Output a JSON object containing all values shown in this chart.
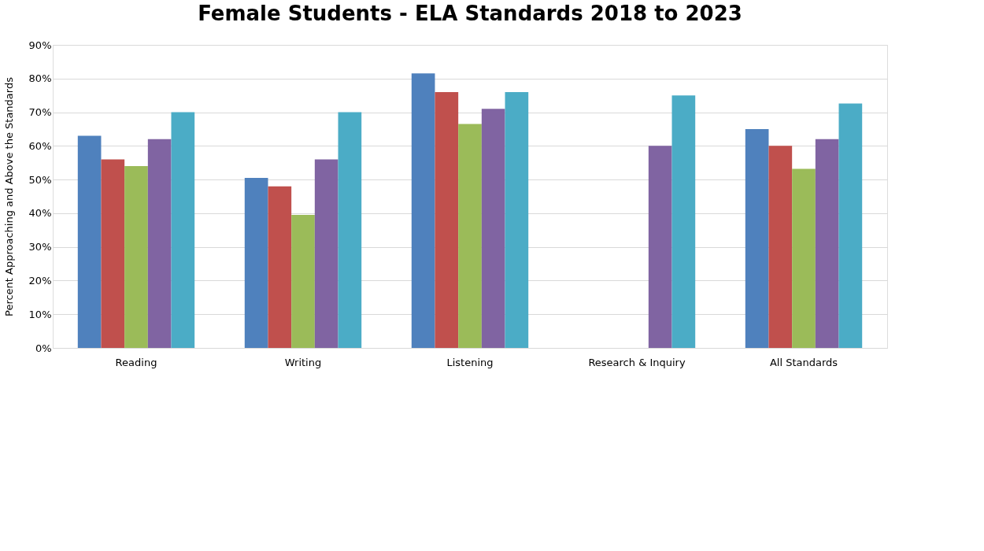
{
  "chart_data": {
    "type": "bar",
    "title": "Female Students - ELA Standards 2018 to 2023",
    "ylabel": "Percent Approaching and  Above the Standards",
    "categories": [
      "Reading",
      "Writing",
      "Listening",
      "Research & Inquiry",
      "All Standards"
    ],
    "series": [
      {
        "color": "#4f81bd",
        "values": [
          63,
          50.5,
          81.5,
          null,
          65
        ]
      },
      {
        "color": "#c0504d",
        "values": [
          56,
          48,
          76,
          null,
          60
        ]
      },
      {
        "color": "#9bbb59",
        "values": [
          54,
          39.5,
          66.5,
          null,
          53.2
        ]
      },
      {
        "color": "#8064a2",
        "values": [
          62,
          56,
          71,
          60,
          62
        ]
      },
      {
        "color": "#4bacc6",
        "values": [
          70,
          70,
          76,
          75,
          72.6
        ]
      }
    ],
    "ylim": [
      0,
      90
    ],
    "yticks": [
      {
        "value": 0,
        "label": "0%"
      },
      {
        "value": 10,
        "label": "10%"
      },
      {
        "value": 20,
        "label": "20%"
      },
      {
        "value": 30,
        "label": "30%"
      },
      {
        "value": 40,
        "label": "40%"
      },
      {
        "value": 50,
        "label": "50%"
      },
      {
        "value": 60,
        "label": "60%"
      },
      {
        "value": 70,
        "label": "70%"
      },
      {
        "value": 80,
        "label": "80%"
      },
      {
        "value": 90,
        "label": "90%"
      }
    ],
    "grid": "y",
    "legend": false
  }
}
